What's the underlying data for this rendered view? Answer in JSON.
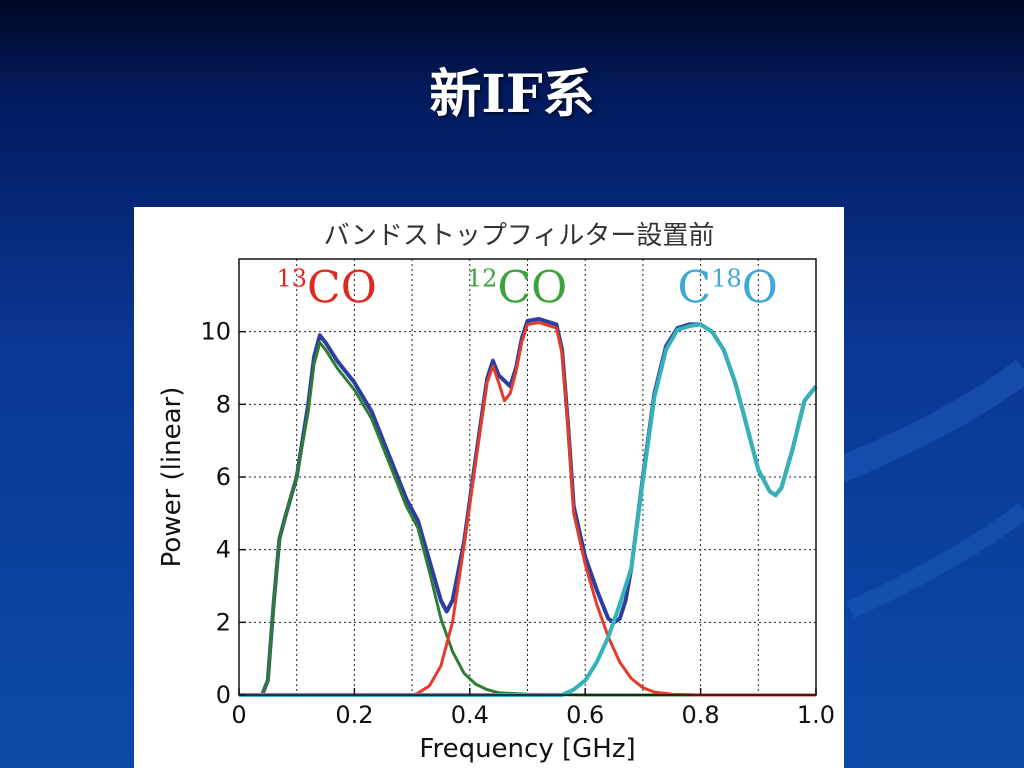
{
  "slide": {
    "title": "新IF系"
  },
  "chart_data": {
    "type": "line",
    "title": "バンドストップフィルター設置前",
    "xlabel": "Frequency [GHz]",
    "ylabel": "Power (linear)",
    "xlim": [
      0,
      1.0
    ],
    "ylim": [
      0,
      12
    ],
    "xticks": [
      "0",
      "0.2",
      "0.4",
      "0.6",
      "0.8",
      "1.0"
    ],
    "xtick_values": [
      0,
      0.2,
      0.4,
      0.6,
      0.8,
      1.0
    ],
    "yticks": [
      "0",
      "2",
      "4",
      "6",
      "8",
      "10"
    ],
    "ytick_values": [
      0,
      2,
      4,
      6,
      8,
      10
    ],
    "grid": true,
    "annotations": [
      {
        "iso": "13",
        "before": "",
        "after": "CO",
        "x": 0.065,
        "y": 10.8,
        "color": "#dd2a20"
      },
      {
        "iso": "12",
        "before": "",
        "after": "CO",
        "x": 0.395,
        "y": 10.8,
        "color": "#3aa43a"
      },
      {
        "iso": "18",
        "before": "C",
        "after": "O",
        "x": 0.76,
        "y": 10.8,
        "color": "#3ea8d8"
      }
    ],
    "series": [
      {
        "color": "#2d3f9e",
        "width": 4,
        "x": [
          0,
          0.04,
          0.05,
          0.06,
          0.07,
          0.08,
          0.1,
          0.12,
          0.13,
          0.14,
          0.15,
          0.17,
          0.2,
          0.23,
          0.26,
          0.29,
          0.31,
          0.33,
          0.35,
          0.36,
          0.37,
          0.39,
          0.41,
          0.43,
          0.44,
          0.45,
          0.47,
          0.48,
          0.49,
          0.5,
          0.52,
          0.55,
          0.56,
          0.57,
          0.58,
          0.6,
          0.62,
          0.64,
          0.65,
          0.66,
          0.67,
          0.68,
          0.7,
          0.72,
          0.74,
          0.76,
          0.78,
          0.8,
          0.82,
          0.84,
          0.86,
          0.88,
          0.9,
          0.92,
          0.93,
          0.94,
          0.96,
          0.98,
          1.0
        ],
        "y": [
          0,
          0,
          0.4,
          2.5,
          4.3,
          4.9,
          6.0,
          8.0,
          9.3,
          9.9,
          9.7,
          9.2,
          8.6,
          7.8,
          6.6,
          5.4,
          4.8,
          3.7,
          2.6,
          2.3,
          2.6,
          4.2,
          6.5,
          8.7,
          9.2,
          8.8,
          8.5,
          9.0,
          9.8,
          10.3,
          10.35,
          10.2,
          9.5,
          7.5,
          5.2,
          3.8,
          2.9,
          2.1,
          2.0,
          2.1,
          2.6,
          3.5,
          6.0,
          8.3,
          9.6,
          10.1,
          10.2,
          10.2,
          10.0,
          9.5,
          8.6,
          7.4,
          6.2,
          5.6,
          5.5,
          5.7,
          6.8,
          8.1,
          8.5
        ]
      },
      {
        "color": "#2e7d32",
        "width": 3,
        "x": [
          0,
          0.04,
          0.05,
          0.06,
          0.07,
          0.08,
          0.1,
          0.12,
          0.13,
          0.14,
          0.15,
          0.17,
          0.2,
          0.23,
          0.26,
          0.29,
          0.31,
          0.33,
          0.35,
          0.37,
          0.39,
          0.41,
          0.43,
          0.45,
          0.5,
          0.6,
          0.8,
          1.0
        ],
        "y": [
          0,
          0,
          0.4,
          2.5,
          4.3,
          4.9,
          6.0,
          7.8,
          9.1,
          9.7,
          9.5,
          9.0,
          8.4,
          7.6,
          6.4,
          5.2,
          4.6,
          3.4,
          2.1,
          1.2,
          0.6,
          0.3,
          0.15,
          0.06,
          0.02,
          0,
          0,
          0
        ]
      },
      {
        "color": "#e53b2a",
        "width": 3,
        "x": [
          0,
          0.3,
          0.31,
          0.33,
          0.35,
          0.37,
          0.39,
          0.41,
          0.43,
          0.44,
          0.45,
          0.46,
          0.47,
          0.48,
          0.49,
          0.5,
          0.52,
          0.55,
          0.56,
          0.57,
          0.58,
          0.6,
          0.62,
          0.64,
          0.66,
          0.68,
          0.7,
          0.72,
          0.75,
          0.8,
          1.0
        ],
        "y": [
          0,
          0,
          0.05,
          0.25,
          0.8,
          2.0,
          4.1,
          6.4,
          8.6,
          9.05,
          8.6,
          8.1,
          8.3,
          8.9,
          9.7,
          10.2,
          10.25,
          10.1,
          9.4,
          7.4,
          5.0,
          3.6,
          2.5,
          1.6,
          0.9,
          0.45,
          0.2,
          0.08,
          0.02,
          0,
          0
        ]
      },
      {
        "color": "#33b2b8",
        "width": 4,
        "x": [
          0,
          0.56,
          0.58,
          0.6,
          0.62,
          0.64,
          0.66,
          0.68,
          0.7,
          0.72,
          0.74,
          0.76,
          0.78,
          0.8,
          0.82,
          0.84,
          0.86,
          0.88,
          0.9,
          0.92,
          0.93,
          0.94,
          0.96,
          0.98,
          1.0
        ],
        "y": [
          0,
          0,
          0.15,
          0.4,
          0.9,
          1.6,
          2.5,
          3.5,
          5.9,
          8.2,
          9.5,
          10.05,
          10.15,
          10.2,
          10.0,
          9.5,
          8.6,
          7.4,
          6.2,
          5.6,
          5.5,
          5.7,
          6.8,
          8.1,
          8.5
        ]
      }
    ]
  }
}
